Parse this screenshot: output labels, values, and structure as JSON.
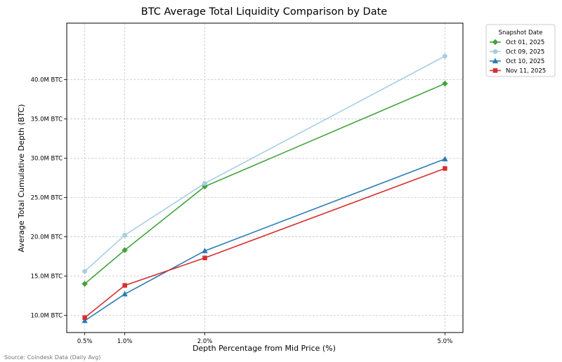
{
  "chart_data": {
    "type": "line",
    "title": "BTC Average Total Liquidity Comparison by Date",
    "xlabel": "Depth Percentage from Mid Price (%)",
    "ylabel": "Average Total Cumulative Depth (BTC)",
    "x": [
      0.5,
      1.0,
      2.0,
      5.0
    ],
    "x_tick_labels": [
      "0.5%",
      "1.0%",
      "2.0%",
      "5.0%"
    ],
    "xlim": [
      0.275,
      5.225
    ],
    "ylim": [
      7.8,
      47.2
    ],
    "y_ticks": [
      10,
      15,
      20,
      25,
      30,
      35,
      40
    ],
    "y_tick_labels": [
      "10.0M BTC",
      "15.0M BTC",
      "20.0M BTC",
      "25.0M BTC",
      "30.0M BTC",
      "35.0M BTC",
      "40.0M BTC"
    ],
    "grid": true,
    "legend_title": "Snapshot Date",
    "legend_position": "outside-top-right",
    "series": [
      {
        "name": "Oct 01, 2025",
        "color": "#43a23e",
        "marker": "diamond",
        "values": [
          14.0,
          18.3,
          26.4,
          39.5
        ]
      },
      {
        "name": "Oct 09, 2025",
        "color": "#a6cee3",
        "marker": "circle",
        "values": [
          15.6,
          20.2,
          26.8,
          43.0
        ]
      },
      {
        "name": "Oct 10, 2025",
        "color": "#2b7bb4",
        "marker": "triangle",
        "values": [
          9.3,
          12.7,
          18.2,
          29.9
        ]
      },
      {
        "name": "Nov 11, 2025",
        "color": "#d62f2f",
        "marker": "square",
        "values": [
          9.7,
          13.8,
          17.3,
          28.7
        ]
      }
    ]
  },
  "source_note": "Source: Coindesk Data (Daily Avg)"
}
